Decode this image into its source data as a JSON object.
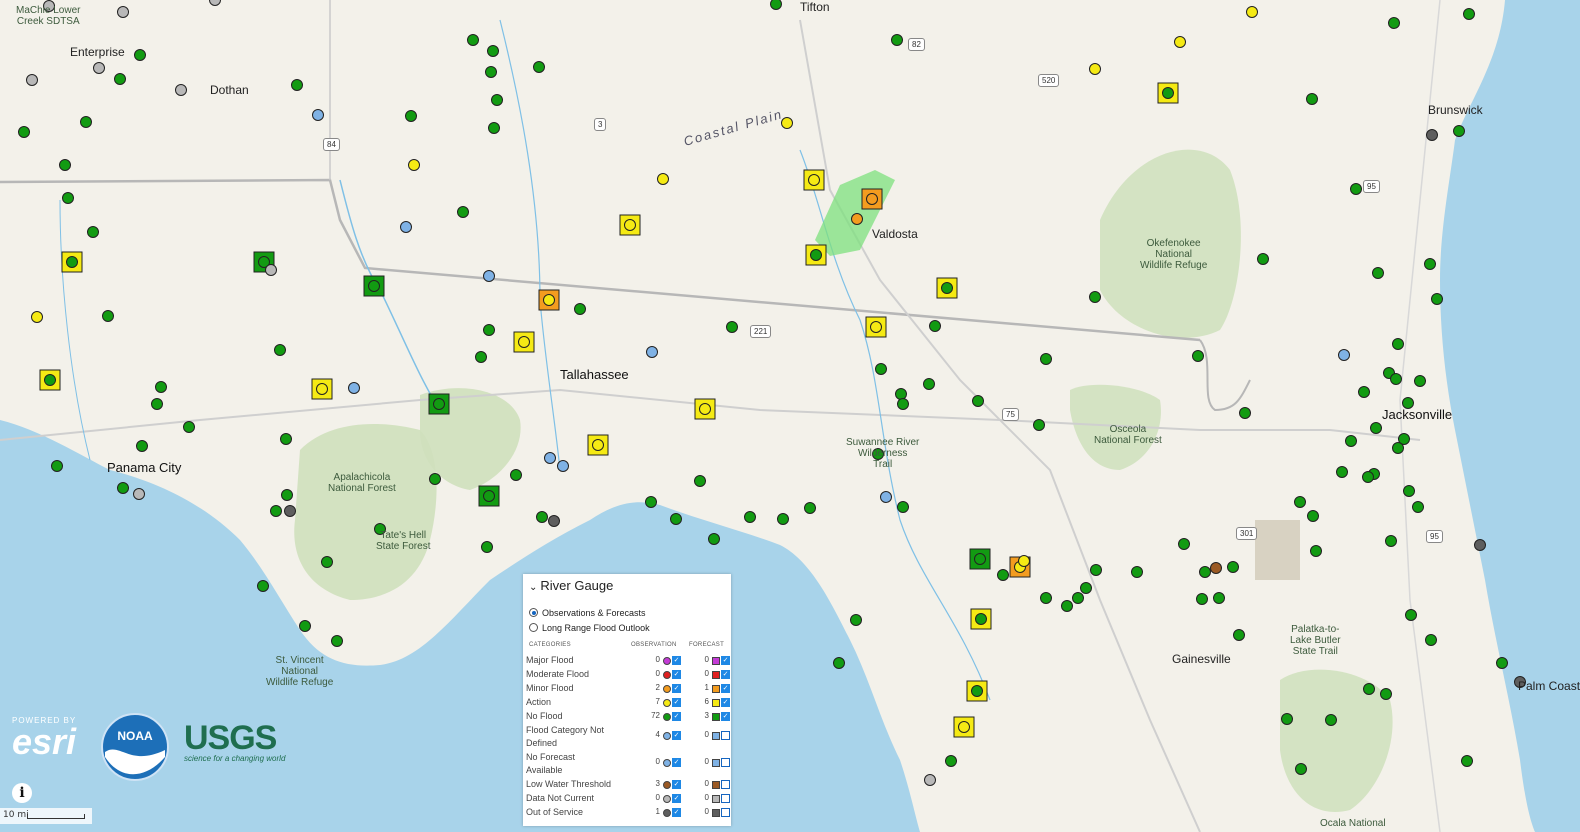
{
  "map": {
    "places": [
      {
        "name": "Tifton",
        "kind": "city"
      },
      {
        "name": "Valdosta",
        "kind": "city"
      },
      {
        "name": "Tallahassee",
        "kind": "bigcity"
      },
      {
        "name": "Panama City",
        "kind": "bigcity"
      },
      {
        "name": "Jacksonville",
        "kind": "bigcity"
      },
      {
        "name": "Gainesville",
        "kind": "city"
      },
      {
        "name": "Dothan",
        "kind": "city"
      },
      {
        "name": "Enterprise",
        "kind": "city"
      },
      {
        "name": "Brunswick",
        "kind": "city"
      },
      {
        "name": "Palm Coast",
        "kind": "city"
      },
      {
        "name": "MaChie Lower\nCreek SDTSA",
        "kind": "park"
      },
      {
        "name": "Coastal Plain",
        "kind": "region"
      },
      {
        "name": "Okefenokee\nNational\nWildlife Refuge",
        "kind": "park"
      },
      {
        "name": "Osceola\nNational Forest",
        "kind": "park"
      },
      {
        "name": "Suwannee River\nWilderness\nTrail",
        "kind": "park"
      },
      {
        "name": "Apalachicola\nNational Forest",
        "kind": "park"
      },
      {
        "name": "Tate's Hell\nState Forest",
        "kind": "park"
      },
      {
        "name": "St. Vincent\nNational\nWildlife Refuge",
        "kind": "park"
      },
      {
        "name": "Palatka-to-\nLake Butler\nState Trail",
        "kind": "park"
      },
      {
        "name": "Ocala National",
        "kind": "park"
      }
    ],
    "shields": [
      "82",
      "520",
      "3",
      "84",
      "95",
      "221",
      "75",
      "301",
      "95"
    ],
    "gauge_colors": {
      "major": "#c43bd6",
      "moderate": "#e02020",
      "minor": "#f39c1f",
      "action": "#f5ea14",
      "no_flood": "#129b12",
      "no_category": "#7fb2e5",
      "no_forecast": "#7fb2e5",
      "low_water": "#9b5a24",
      "not_current": "#b8b8b8",
      "out_of_service": "#5e5e5e"
    }
  },
  "legend": {
    "title": "River Gauge",
    "options": [
      {
        "label": "Observations & Forecasts",
        "selected": true
      },
      {
        "label": "Long Range Flood Outlook",
        "selected": false
      }
    ],
    "col_categories": "CATEGORIES",
    "col_observation": "OBSERVATION",
    "col_forecast": "FORECAST",
    "rows": [
      {
        "label": "Major Flood",
        "obs": "0",
        "obs_checked": true,
        "fc": "0",
        "fc_checked": true,
        "color": "#c43bd6"
      },
      {
        "label": "Moderate Flood",
        "obs": "0",
        "obs_checked": true,
        "fc": "0",
        "fc_checked": true,
        "color": "#e02020"
      },
      {
        "label": "Minor Flood",
        "obs": "2",
        "obs_checked": true,
        "fc": "1",
        "fc_checked": true,
        "color": "#f39c1f"
      },
      {
        "label": "Action",
        "obs": "7",
        "obs_checked": true,
        "fc": "6",
        "fc_checked": true,
        "color": "#f5ea14"
      },
      {
        "label": "No Flood",
        "obs": "72",
        "obs_checked": true,
        "fc": "3",
        "fc_checked": true,
        "color": "#129b12"
      },
      {
        "label": "Flood Category Not\nDefined",
        "obs": "4",
        "obs_checked": true,
        "fc": "0",
        "fc_checked": false,
        "color": "#7fb2e5"
      },
      {
        "label": "No Forecast\nAvailable",
        "obs": "0",
        "obs_checked": true,
        "fc": "0",
        "fc_checked": false,
        "color": "#7fb2e5"
      },
      {
        "label": "Low Water Threshold",
        "obs": "3",
        "obs_checked": true,
        "fc": "0",
        "fc_checked": false,
        "color": "#9b5a24"
      },
      {
        "label": "Data Not Current",
        "obs": "0",
        "obs_checked": true,
        "fc": "0",
        "fc_checked": false,
        "color": "#b8b8b8"
      },
      {
        "label": "Out of Service",
        "obs": "1",
        "obs_checked": true,
        "fc": "0",
        "fc_checked": false,
        "color": "#5e5e5e"
      }
    ]
  },
  "attribution": {
    "esri_powered": "POWERED BY",
    "esri_name": "esri",
    "usgs_name": "USGS",
    "usgs_tagline": "science for a changing world",
    "noaa_name": "NOAA"
  },
  "scale_label": "10 mi",
  "info_icon": "i"
}
